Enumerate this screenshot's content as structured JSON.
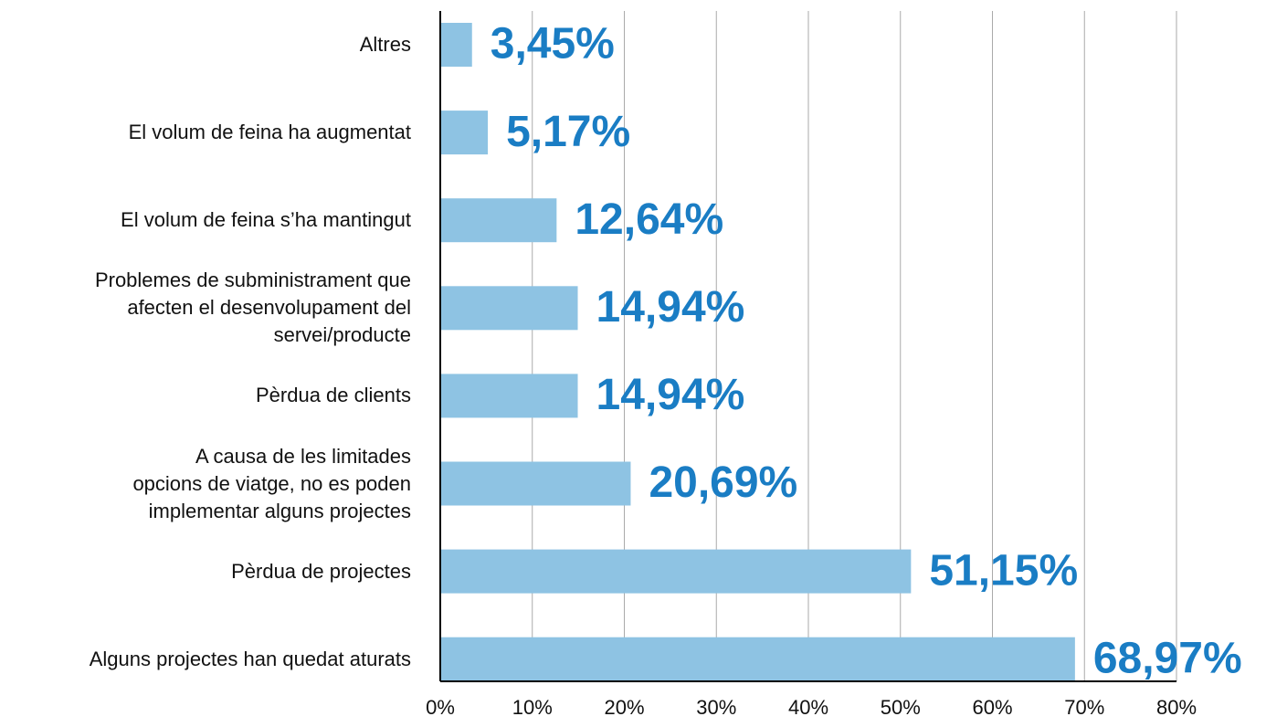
{
  "chart_data": {
    "type": "bar",
    "orientation": "horizontal",
    "categories": [
      "Altres",
      "El volum de feina ha augmentat",
      "El volum de feina s’ha mantingut",
      "Problemes de subministrament que\nafecten el desenvolupament del\nservei/producte",
      "Pèrdua de clients",
      "A causa de les limitades\nopcions de viatge, no es poden\nimplementar alguns projectes",
      "Pèrdua de projectes",
      "Alguns projectes han quedat aturats"
    ],
    "values": [
      3.45,
      5.17,
      12.64,
      14.94,
      14.94,
      20.69,
      51.15,
      68.97
    ],
    "value_labels": [
      "3,45%",
      "5,17%",
      "12,64%",
      "14,94%",
      "14,94%",
      "20,69%",
      "51,15%",
      "68,97%"
    ],
    "color": "#8ec3e3",
    "label_color": "#1a7dc4",
    "xlim": [
      0,
      80
    ],
    "xticks": [
      {
        "value": 0,
        "label": "0%"
      },
      {
        "value": 10,
        "label": "10%"
      },
      {
        "value": 20,
        "label": "20%"
      },
      {
        "value": 30,
        "label": "30%"
      },
      {
        "value": 40,
        "label": "40%"
      },
      {
        "value": 50,
        "label": "50%"
      },
      {
        "value": 60,
        "label": "60%"
      },
      {
        "value": 70,
        "label": "70%"
      },
      {
        "value": 80,
        "label": "80%"
      }
    ],
    "grid": true
  }
}
